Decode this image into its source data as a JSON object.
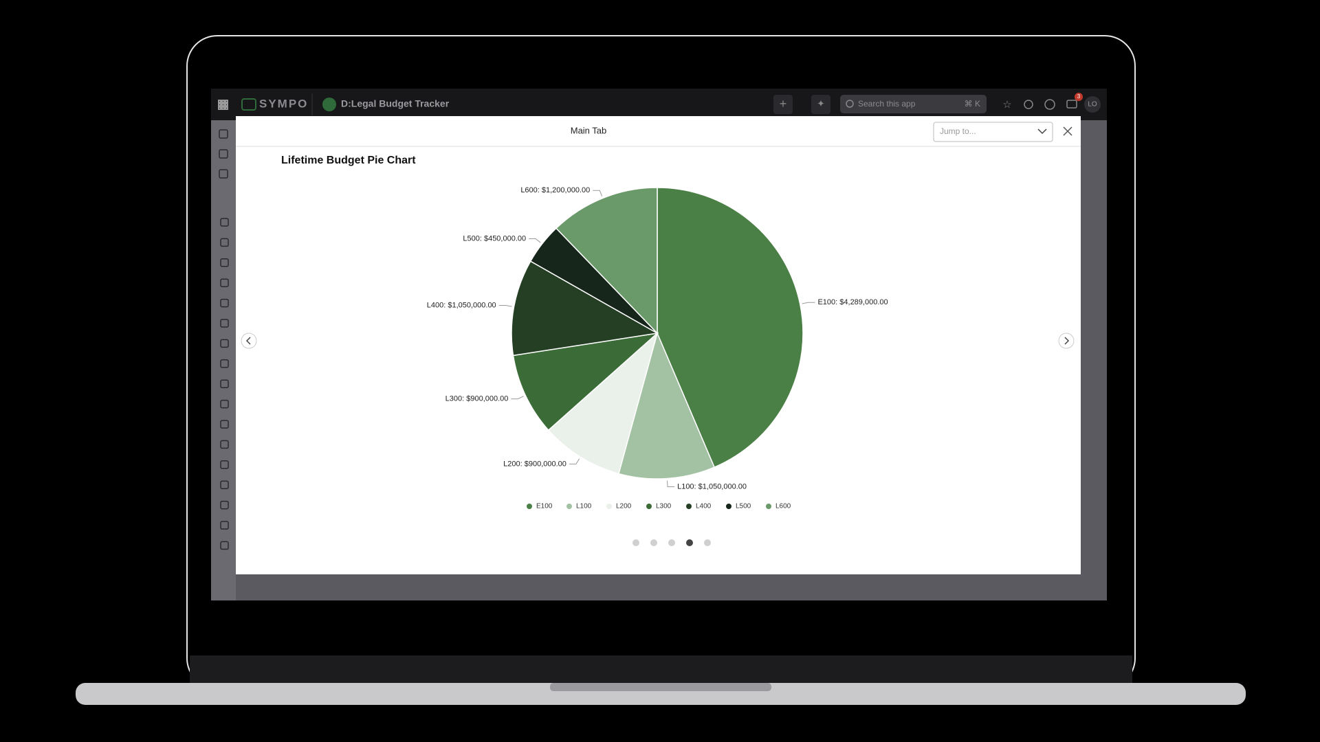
{
  "app": {
    "brand": "SYMPO",
    "app_name": "D:Legal Budget Tracker",
    "search_placeholder": "Search this app",
    "search_shortcut": "⌘ K",
    "notification_count": 3,
    "user_initials": "LO"
  },
  "modal": {
    "tab_title": "Main Tab",
    "jump_placeholder": "Jump to..."
  },
  "chart_data": {
    "type": "pie",
    "title": "Lifetime Budget Pie Chart",
    "categories": [
      "E100",
      "L100",
      "L200",
      "L300",
      "L400",
      "L500",
      "L600"
    ],
    "values": [
      4289000,
      1050000,
      900000,
      900000,
      1050000,
      450000,
      1200000
    ],
    "value_labels": [
      "E100: $4,289,000.00",
      "L100: $1,050,000.00",
      "L200: $900,000.00",
      "L300: $900,000.00",
      "L400: $1,050,000.00",
      "L500: $450,000.00",
      "L600: $1,200,000.00"
    ],
    "colors": [
      "#4a7f45",
      "#a3c2a3",
      "#eaf1ea",
      "#3b6b37",
      "#253f24",
      "#16261a",
      "#6b9a6a"
    ],
    "legend": "bottom"
  }
}
